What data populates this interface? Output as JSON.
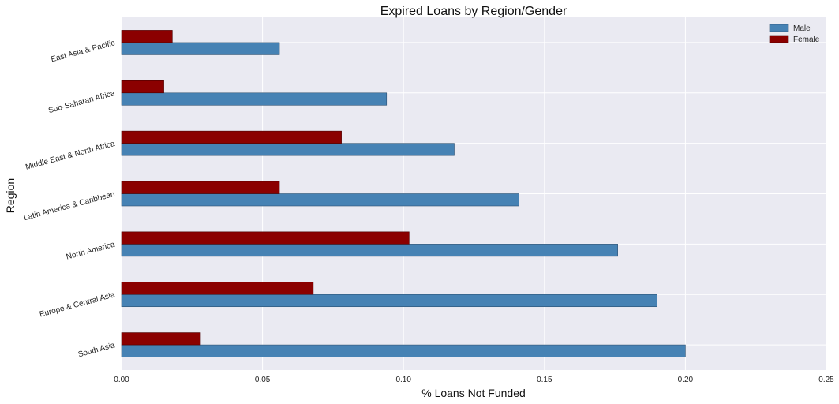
{
  "chart_data": {
    "type": "bar",
    "orientation": "horizontal",
    "title": "Expired Loans by Region/Gender",
    "xlabel": "% Loans Not Funded",
    "ylabel": "Region",
    "xlim": [
      0.0,
      0.25
    ],
    "xticks": [
      "0.00",
      "0.05",
      "0.10",
      "0.15",
      "0.20",
      "0.25"
    ],
    "grid": true,
    "legend_position": "top-right",
    "categories": [
      "South Asia",
      "Europe & Central Asia",
      "North America",
      "Latin America & Caribbean",
      "Middle East & North Africa",
      "Sub-Saharan Africa",
      "East Asia & Pacific"
    ],
    "series": [
      {
        "name": "Male",
        "color": "#4682b4",
        "values": [
          0.2,
          0.19,
          0.176,
          0.141,
          0.118,
          0.094,
          0.056
        ]
      },
      {
        "name": "Female",
        "color": "#8b0000",
        "values": [
          0.028,
          0.068,
          0.102,
          0.056,
          0.078,
          0.015,
          0.018
        ]
      }
    ],
    "background_color": "#eaeaf2",
    "grid_color": "#ffffff"
  }
}
